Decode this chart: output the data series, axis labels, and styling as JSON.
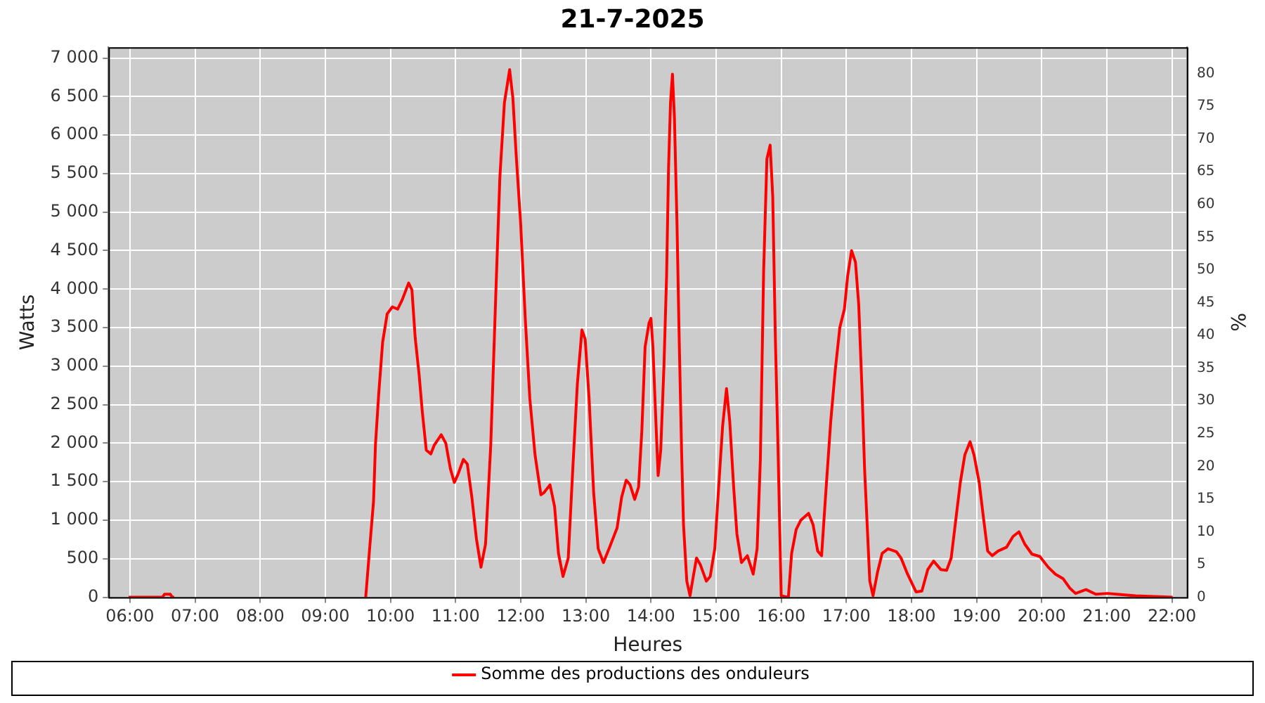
{
  "chart_data": {
    "type": "line",
    "title": "21-7-2025",
    "xlabel": "Heures",
    "ylabel": "Watts",
    "y2label": "%",
    "x": [
      5.98,
      6.5,
      6.53,
      6.62,
      6.65,
      6.68,
      8.0,
      9.62,
      9.68,
      9.74,
      9.77,
      9.82,
      9.88,
      9.95,
      10.03,
      10.11,
      10.18,
      10.28,
      10.33,
      10.38,
      10.44,
      10.49,
      10.55,
      10.62,
      10.67,
      10.78,
      10.85,
      10.92,
      10.98,
      11.03,
      11.12,
      11.18,
      11.25,
      11.32,
      11.39,
      11.46,
      11.54,
      11.62,
      11.68,
      11.75,
      11.83,
      11.88,
      11.93,
      12.0,
      12.07,
      12.14,
      12.22,
      12.31,
      12.36,
      12.45,
      12.52,
      12.58,
      12.65,
      12.73,
      12.8,
      12.87,
      12.94,
      12.99,
      13.05,
      13.12,
      13.19,
      13.27,
      13.37,
      13.48,
      13.55,
      13.62,
      13.68,
      13.75,
      13.81,
      13.86,
      13.91,
      13.97,
      14.0,
      14.03,
      14.07,
      14.11,
      14.15,
      14.2,
      14.24,
      14.27,
      14.3,
      14.33,
      14.36,
      14.4,
      14.43,
      14.47,
      14.5,
      14.55,
      14.6,
      14.65,
      14.7,
      14.76,
      14.85,
      14.91,
      14.98,
      15.03,
      15.1,
      15.16,
      15.21,
      15.27,
      15.32,
      15.39,
      15.48,
      15.57,
      15.63,
      15.68,
      15.73,
      15.78,
      15.83,
      15.87,
      15.91,
      15.95,
      16.0,
      16.11,
      16.16,
      16.23,
      16.3,
      16.42,
      16.49,
      16.56,
      16.62,
      16.68,
      16.76,
      16.83,
      16.9,
      16.97,
      17.02,
      17.08,
      17.14,
      17.19,
      17.24,
      17.28,
      17.32,
      17.36,
      17.41,
      17.48,
      17.55,
      17.64,
      17.77,
      17.84,
      17.94,
      18.07,
      18.16,
      18.25,
      18.34,
      18.45,
      18.54,
      18.61,
      18.68,
      18.75,
      18.82,
      18.9,
      18.96,
      19.04,
      19.11,
      19.17,
      19.24,
      19.33,
      19.46,
      19.56,
      19.65,
      19.74,
      19.85,
      19.97,
      20.1,
      20.21,
      20.33,
      20.43,
      20.52,
      20.68,
      20.83,
      21.01,
      21.15,
      21.44,
      22.01
    ],
    "series": [
      {
        "name": "Somme des productions des onduleurs",
        "color": "#ff0000",
        "values": [
          0,
          0,
          40,
          40,
          0,
          0,
          null,
          0,
          630,
          1240,
          1980,
          2640,
          3310,
          3680,
          3770,
          3740,
          3860,
          4080,
          3990,
          3370,
          2890,
          2400,
          1910,
          1860,
          1970,
          2110,
          2000,
          1670,
          1490,
          1580,
          1790,
          1730,
          1300,
          760,
          390,
          690,
          1970,
          3990,
          5450,
          6420,
          6850,
          6480,
          5750,
          4840,
          3620,
          2580,
          1850,
          1330,
          1360,
          1460,
          1180,
          570,
          270,
          510,
          1670,
          2770,
          3470,
          3350,
          2580,
          1360,
          630,
          450,
          660,
          900,
          1300,
          1520,
          1460,
          1270,
          1430,
          2160,
          3250,
          3560,
          3620,
          3250,
          2400,
          1580,
          1910,
          3010,
          4170,
          5570,
          6420,
          6790,
          6240,
          4840,
          3500,
          1910,
          940,
          210,
          20,
          270,
          510,
          420,
          210,
          270,
          630,
          1300,
          2220,
          2710,
          2280,
          1430,
          820,
          450,
          540,
          300,
          630,
          1790,
          4230,
          5690,
          5870,
          5200,
          3370,
          1970,
          20,
          0,
          570,
          880,
          1000,
          1090,
          940,
          600,
          540,
          1300,
          2280,
          2950,
          3500,
          3740,
          4170,
          4500,
          4350,
          3800,
          2710,
          1670,
          940,
          210,
          20,
          330,
          570,
          630,
          590,
          510,
          300,
          70,
          80,
          360,
          470,
          360,
          350,
          510,
          1000,
          1490,
          1850,
          2020,
          1850,
          1490,
          1000,
          600,
          540,
          600,
          650,
          790,
          850,
          690,
          560,
          530,
          390,
          300,
          240,
          120,
          50,
          100,
          40,
          50,
          40,
          20,
          0
        ]
      }
    ],
    "xlim": [
      5.67,
      22.23
    ],
    "xticks": [
      {
        "value": 6,
        "label": "06:00"
      },
      {
        "value": 7,
        "label": "07:00"
      },
      {
        "value": 8,
        "label": "08:00"
      },
      {
        "value": 9,
        "label": "09:00"
      },
      {
        "value": 10,
        "label": "10:00"
      },
      {
        "value": 11,
        "label": "11:00"
      },
      {
        "value": 12,
        "label": "12:00"
      },
      {
        "value": 13,
        "label": "13:00"
      },
      {
        "value": 14,
        "label": "14:00"
      },
      {
        "value": 15,
        "label": "15:00"
      },
      {
        "value": 16,
        "label": "16:00"
      },
      {
        "value": 17,
        "label": "17:00"
      },
      {
        "value": 18,
        "label": "18:00"
      },
      {
        "value": 19,
        "label": "19:00"
      },
      {
        "value": 20,
        "label": "20:00"
      },
      {
        "value": 21,
        "label": "21:00"
      },
      {
        "value": 22,
        "label": "22:00"
      }
    ],
    "ylim": [
      0,
      7140
    ],
    "yticks": [
      0,
      500,
      {
        "value": 1000,
        "label": "1 000"
      },
      {
        "value": 1500,
        "label": "1 500"
      },
      {
        "value": 2000,
        "label": "2 000"
      },
      {
        "value": 2500,
        "label": "2 500"
      },
      {
        "value": 3000,
        "label": "3 000"
      },
      {
        "value": 3500,
        "label": "3 500"
      },
      {
        "value": 4000,
        "label": "4 000"
      },
      {
        "value": 4500,
        "label": "4 500"
      },
      {
        "value": 5000,
        "label": "5 000"
      },
      {
        "value": 5500,
        "label": "5 500"
      },
      {
        "value": 6000,
        "label": "6 000"
      },
      {
        "value": 6500,
        "label": "6 500"
      },
      {
        "value": 7000,
        "label": "7 000"
      }
    ],
    "y2lim": [
      0,
      84
    ],
    "y2ticks": [
      0,
      5,
      10,
      15,
      20,
      25,
      30,
      35,
      40,
      45,
      50,
      55,
      60,
      65,
      70,
      75,
      80
    ],
    "grid": true,
    "legend": "bottom",
    "marker": "none",
    "line_style": "solid"
  }
}
